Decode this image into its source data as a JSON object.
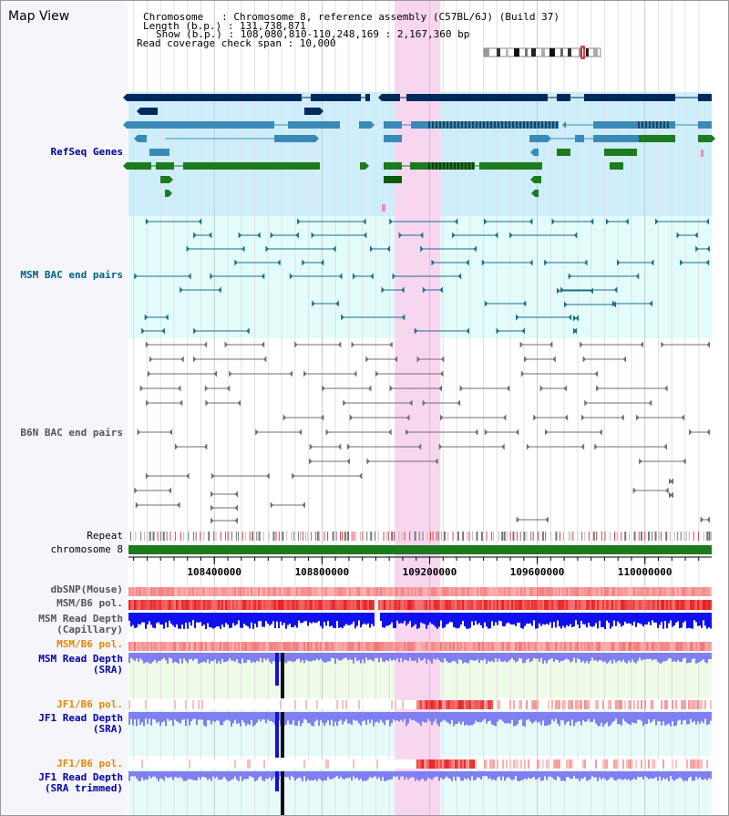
{
  "view_title": "Map View",
  "header": {
    "lines": [
      "Chromosome   : Chromosome 8, reference assembly (C57BL/6J) (Build 37)",
      "Length (b.p.) : 131,738,871",
      "Show (b.p.) : 108,080,810-110,248,169 : 2,167,360 bp",
      "Read coverage check span : 10,000"
    ]
  },
  "region": {
    "start": 108080810,
    "end": 110248169,
    "highlight_start": 109070000,
    "highlight_end": 109240000
  },
  "axis": {
    "ticks": [
      {
        "pos": 108400000,
        "label": "108400000"
      },
      {
        "pos": 108800000,
        "label": "108800000"
      },
      {
        "pos": 109200000,
        "label": "109200000"
      },
      {
        "pos": 109600000,
        "label": "109600000"
      },
      {
        "pos": 110000000,
        "label": "110000000"
      }
    ]
  },
  "tracks": {
    "refseq": {
      "label": "RefSeq Genes",
      "color": "#000099"
    },
    "msm_bac": {
      "label": "MSM BAC end pairs",
      "color": "#006080"
    },
    "b6n_bac": {
      "label": "B6N BAC end pairs",
      "color": "#555555"
    },
    "repeat": {
      "label": "Repeat",
      "color": "#000000"
    },
    "chromosome": {
      "label": "chromosome 8",
      "color": "#000000"
    },
    "dbsnp": {
      "label": "dbSNP(Mouse)",
      "color": "#555555"
    },
    "msm_pol": {
      "label": "MSM/B6 pol.",
      "color": "#555555"
    },
    "msm_depth_cap": {
      "label": "MSM Read Depth\n(Capillary)",
      "color": "#555555"
    },
    "msm_pol2": {
      "label": "MSM/B6 pol.",
      "color": "#e08a00"
    },
    "msm_depth_sra": {
      "label": "MSM Read Depth\n(SRA)",
      "color": "#0000aa"
    },
    "jf1_pol": {
      "label": "JF1/B6 pol.",
      "color": "#e08a00"
    },
    "jf1_depth_sra": {
      "label": "JF1 Read Depth\n(SRA)",
      "color": "#0000aa"
    },
    "jf1_pol2": {
      "label": "JF1/B6 pol.",
      "color": "#e08a00"
    },
    "jf1_depth_trim": {
      "label": "JF1 Read Depth\n(SRA trimmed)",
      "color": "#0000aa"
    }
  },
  "colors": {
    "navy": "#002a5c",
    "steel": "#3a8ab8",
    "green": "#1e7a1e",
    "teal": "#1a6f8a",
    "gray": "#6f6f6f",
    "highlight": "#f9d6f0",
    "light_blue_bg": "#cdeefa",
    "light_cyan_bg": "#e2fbfb",
    "depth_blue": "#1010ee",
    "sra_blue": "#7f7ff2",
    "red": "#dd1111",
    "pink": "#f9b8b8"
  }
}
